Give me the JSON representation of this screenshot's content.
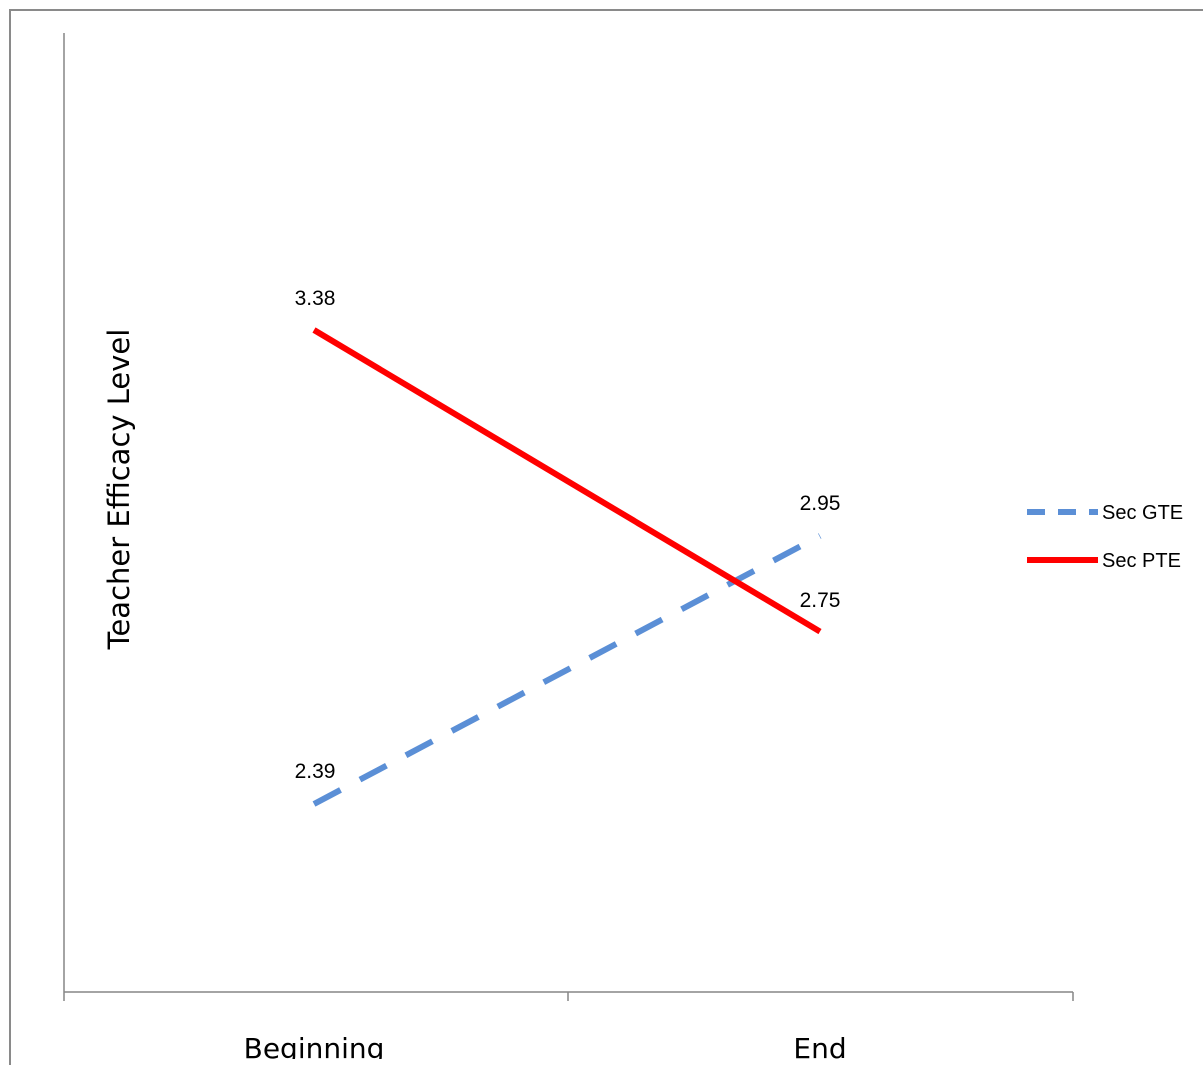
{
  "chart_data": {
    "type": "line",
    "title": "",
    "xlabel": "",
    "ylabel": "Teacher Efficacy Level",
    "categories": [
      "Beginning",
      "End"
    ],
    "series": [
      {
        "name": "Sec GTE",
        "values": [
          2.39,
          2.95
        ],
        "color": "#5B8FD6",
        "style": "dashed"
      },
      {
        "name": "Sec PTE",
        "values": [
          3.38,
          2.75
        ],
        "color": "#FF0000",
        "style": "solid"
      }
    ],
    "data_labels": [
      {
        "text": "3.38"
      },
      {
        "text": "2.39"
      },
      {
        "text": "2.95"
      },
      {
        "text": "2.75"
      }
    ],
    "grid": false,
    "legend": "right"
  }
}
